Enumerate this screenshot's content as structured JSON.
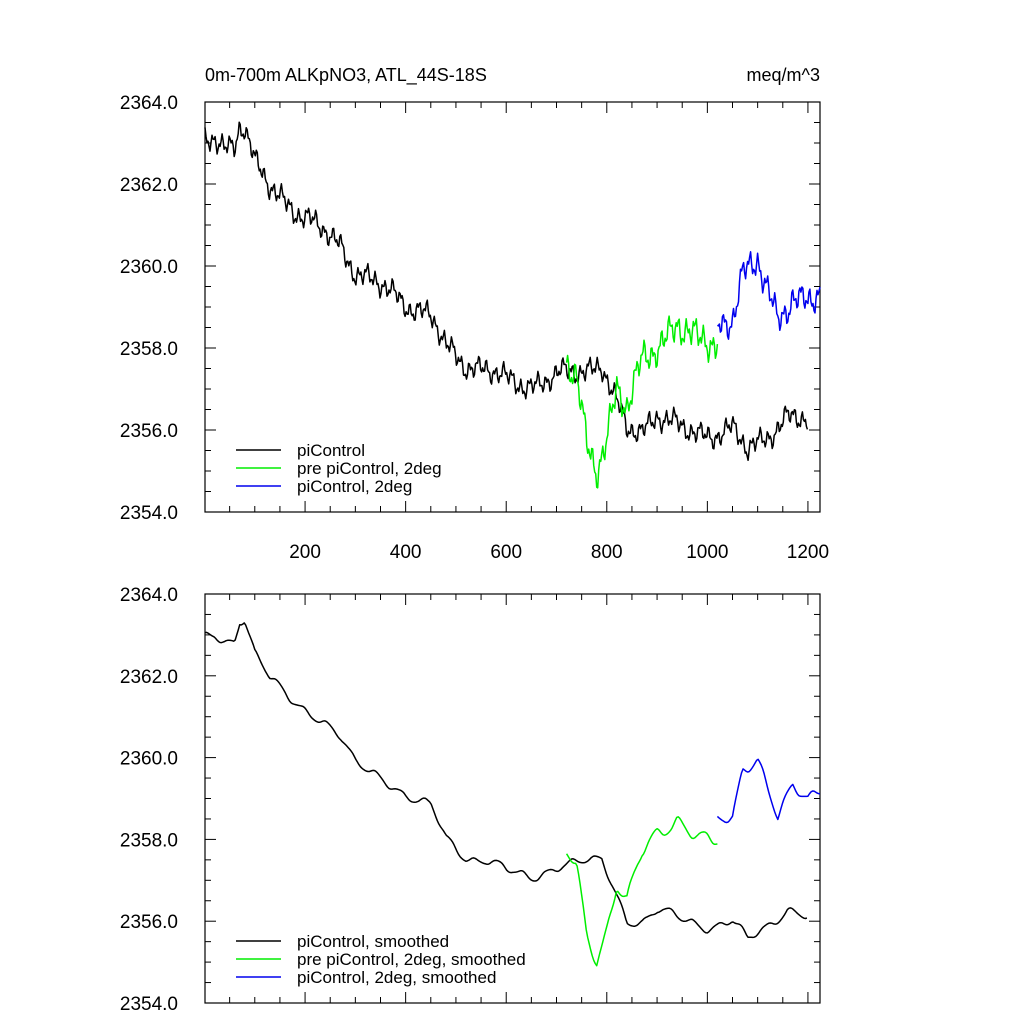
{
  "header": {
    "title": "0m-700m ALKpNO3, ATL_44S-18S",
    "units": "meq/m^3"
  },
  "colors": {
    "piControl": "#000000",
    "pre_piControl_2deg": "#00ee00",
    "piControl_2deg": "#0000ee"
  },
  "chart_data": [
    {
      "type": "line",
      "panel": "top",
      "xlim": [
        1,
        1224
      ],
      "ylim": [
        2354.0,
        2364.0
      ],
      "xticks": [
        200,
        400,
        600,
        800,
        1000,
        1200
      ],
      "xtick_labels": [
        "200",
        "400",
        "600",
        "800",
        "1000",
        "1200"
      ],
      "yticks": [
        2354.0,
        2356.0,
        2358.0,
        2360.0,
        2362.0,
        2364.0
      ],
      "ytick_labels": [
        "2354.0",
        "2356.0",
        "2358.0",
        "2360.0",
        "2362.0",
        "2364.0"
      ],
      "legend_position": "bottom-left",
      "smoothed": false,
      "series": [
        {
          "name": "piControl",
          "color_key": "piControl",
          "x_range": [
            1,
            1200
          ],
          "anchors": [
            [
              1,
              2363.0
            ],
            [
              20,
              2363.1
            ],
            [
              40,
              2362.9
            ],
            [
              60,
              2363.0
            ],
            [
              70,
              2363.5
            ],
            [
              80,
              2363.4
            ],
            [
              100,
              2362.5
            ],
            [
              130,
              2361.9
            ],
            [
              160,
              2361.6
            ],
            [
              200,
              2361.2
            ],
            [
              240,
              2360.8
            ],
            [
              270,
              2360.5
            ],
            [
              300,
              2359.9
            ],
            [
              350,
              2359.5
            ],
            [
              400,
              2359.1
            ],
            [
              450,
              2358.8
            ],
            [
              480,
              2358.0
            ],
            [
              520,
              2357.6
            ],
            [
              560,
              2357.5
            ],
            [
              600,
              2357.2
            ],
            [
              650,
              2357.1
            ],
            [
              700,
              2357.3
            ],
            [
              730,
              2357.4
            ],
            [
              760,
              2357.5
            ],
            [
              790,
              2357.6
            ],
            [
              820,
              2356.6
            ],
            [
              840,
              2356.0
            ],
            [
              870,
              2356.0
            ],
            [
              900,
              2356.4
            ],
            [
              950,
              2356.0
            ],
            [
              1000,
              2355.9
            ],
            [
              1050,
              2356.0
            ],
            [
              1080,
              2355.5
            ],
            [
              1120,
              2355.9
            ],
            [
              1160,
              2356.3
            ],
            [
              1200,
              2356.2
            ]
          ],
          "noise": 0.35
        },
        {
          "name": "pre piControl, 2deg",
          "color_key": "pre_piControl_2deg",
          "x_range": [
            720,
            1020
          ],
          "anchors": [
            [
              720,
              2357.6
            ],
            [
              740,
              2357.2
            ],
            [
              760,
              2355.6
            ],
            [
              780,
              2355.1
            ],
            [
              800,
              2355.9
            ],
            [
              820,
              2357.0
            ],
            [
              840,
              2356.5
            ],
            [
              870,
              2357.6
            ],
            [
              900,
              2358.1
            ],
            [
              940,
              2358.6
            ],
            [
              980,
              2358.1
            ],
            [
              1020,
              2358.2
            ]
          ],
          "noise": 0.5
        },
        {
          "name": "piControl, 2deg",
          "color_key": "piControl_2deg",
          "x_range": [
            1020,
            1224
          ],
          "anchors": [
            [
              1020,
              2358.4
            ],
            [
              1050,
              2358.8
            ],
            [
              1070,
              2359.9
            ],
            [
              1100,
              2360.1
            ],
            [
              1120,
              2359.3
            ],
            [
              1140,
              2358.6
            ],
            [
              1170,
              2359.3
            ],
            [
              1200,
              2359.2
            ],
            [
              1224,
              2359.3
            ]
          ],
          "noise": 0.45
        }
      ]
    },
    {
      "type": "line",
      "panel": "bottom",
      "xlim": [
        1,
        1224
      ],
      "ylim": [
        2354.0,
        2364.0
      ],
      "yticks": [
        2354.0,
        2356.0,
        2358.0,
        2360.0,
        2362.0,
        2364.0
      ],
      "ytick_labels": [
        "2354.0",
        "2356.0",
        "2358.0",
        "2360.0",
        "2362.0",
        "2364.0"
      ],
      "legend_position": "bottom-left",
      "smoothed": true,
      "series": [
        {
          "name": "piControl, smoothed",
          "color_key": "piControl",
          "x_range": [
            1,
            1200
          ],
          "anchors": [
            [
              1,
              2362.9
            ],
            [
              20,
              2363.0
            ],
            [
              40,
              2362.9
            ],
            [
              60,
              2362.9
            ],
            [
              70,
              2363.4
            ],
            [
              80,
              2363.4
            ],
            [
              100,
              2362.5
            ],
            [
              130,
              2361.9
            ],
            [
              160,
              2361.6
            ],
            [
              200,
              2361.2
            ],
            [
              240,
              2360.8
            ],
            [
              270,
              2360.5
            ],
            [
              300,
              2359.9
            ],
            [
              350,
              2359.5
            ],
            [
              400,
              2359.1
            ],
            [
              450,
              2358.8
            ],
            [
              480,
              2358.0
            ],
            [
              520,
              2357.6
            ],
            [
              560,
              2357.5
            ],
            [
              600,
              2357.2
            ],
            [
              650,
              2357.1
            ],
            [
              700,
              2357.3
            ],
            [
              730,
              2357.4
            ],
            [
              760,
              2357.5
            ],
            [
              790,
              2357.5
            ],
            [
              820,
              2356.6
            ],
            [
              840,
              2356.0
            ],
            [
              870,
              2356.0
            ],
            [
              900,
              2356.3
            ],
            [
              950,
              2356.0
            ],
            [
              1000,
              2355.9
            ],
            [
              1050,
              2356.0
            ],
            [
              1080,
              2355.5
            ],
            [
              1120,
              2355.9
            ],
            [
              1160,
              2356.3
            ],
            [
              1200,
              2356.1
            ]
          ],
          "noise": 0.18
        },
        {
          "name": "pre piControl, 2deg, smoothed",
          "color_key": "pre_piControl_2deg",
          "x_range": [
            720,
            1020
          ],
          "anchors": [
            [
              720,
              2357.6
            ],
            [
              740,
              2357.2
            ],
            [
              760,
              2355.6
            ],
            [
              780,
              2355.1
            ],
            [
              800,
              2355.9
            ],
            [
              820,
              2357.0
            ],
            [
              840,
              2356.5
            ],
            [
              870,
              2357.6
            ],
            [
              900,
              2358.1
            ],
            [
              940,
              2358.5
            ],
            [
              980,
              2358.1
            ],
            [
              1020,
              2358.0
            ]
          ],
          "noise": 0.3
        },
        {
          "name": "piControl, 2deg, smoothed",
          "color_key": "piControl_2deg",
          "x_range": [
            1020,
            1224
          ],
          "anchors": [
            [
              1020,
              2358.4
            ],
            [
              1050,
              2358.6
            ],
            [
              1070,
              2359.8
            ],
            [
              1100,
              2360.0
            ],
            [
              1120,
              2359.2
            ],
            [
              1140,
              2358.5
            ],
            [
              1170,
              2359.3
            ],
            [
              1200,
              2359.0
            ],
            [
              1224,
              2359.2
            ]
          ],
          "noise": 0.25
        }
      ]
    }
  ]
}
